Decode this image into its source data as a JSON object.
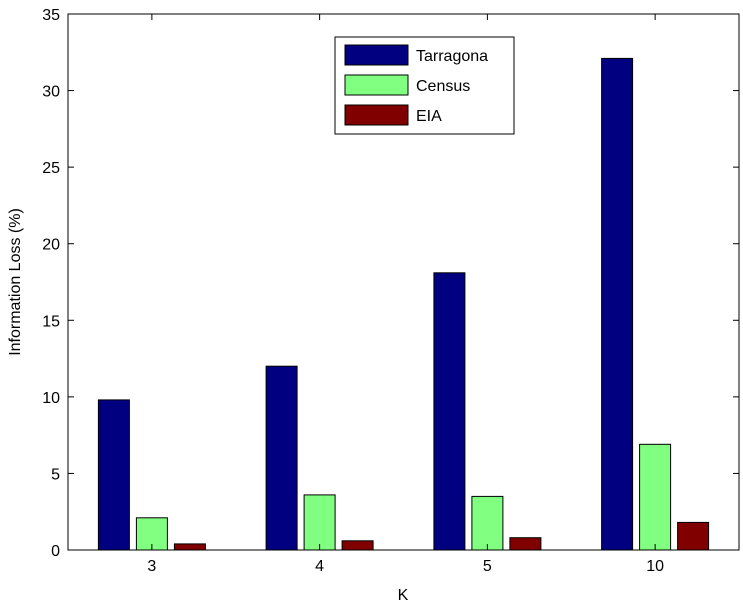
{
  "chart_data": {
    "type": "bar",
    "title": "",
    "xlabel": "K",
    "ylabel": "Information Loss (%)",
    "categories": [
      "3",
      "4",
      "5",
      "10"
    ],
    "ylim": [
      0,
      35
    ],
    "yticks": [
      0,
      5,
      10,
      15,
      20,
      25,
      30,
      35
    ],
    "grid": false,
    "legend_position": "top-center",
    "series": [
      {
        "name": "Tarragona",
        "color": "#000080",
        "values": [
          9.8,
          12.0,
          18.1,
          32.1
        ]
      },
      {
        "name": "Census",
        "color": "#80ff80",
        "values": [
          2.1,
          3.6,
          3.5,
          6.9
        ]
      },
      {
        "name": "EIA",
        "color": "#800000",
        "values": [
          0.4,
          0.6,
          0.8,
          1.8
        ]
      }
    ]
  }
}
